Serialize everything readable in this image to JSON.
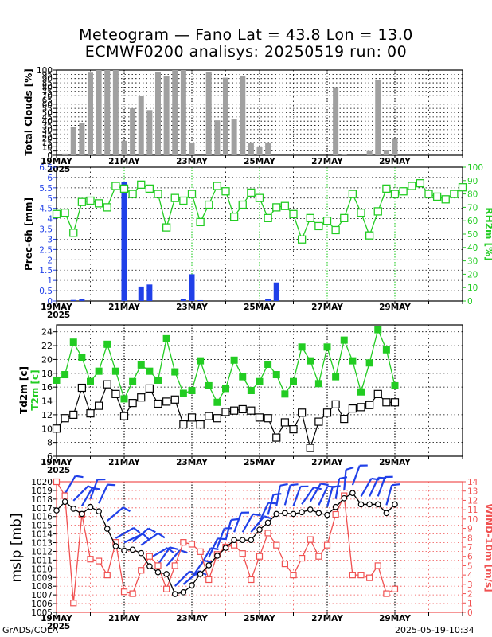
{
  "title_line1": "Meteogram — Fano Lat = 43.8 Lon = 13.0",
  "title_line2": "ECMWF0200 analisys: 20250519 run: 00",
  "footer_left": "GrADS/COLA",
  "footer_right": "2025-05-19-10:34",
  "colors": {
    "bar_gray": "#a0a0a0",
    "blue": "#2040e8",
    "green": "#22cc22",
    "red": "#f05050",
    "black": "#000000"
  },
  "chart_data": [
    {
      "type": "bar",
      "ylabel": "Total Clouds [%]",
      "ylim": [
        0,
        100
      ],
      "yticks": [
        0,
        5,
        10,
        15,
        20,
        25,
        30,
        35,
        40,
        45,
        50,
        55,
        60,
        65,
        70,
        75,
        80,
        85,
        90,
        95,
        100
      ],
      "xticks": [
        "19MAY",
        "21MAY",
        "23MAY",
        "25MAY",
        "27MAY",
        "29MAY"
      ],
      "year": "2025",
      "grid": true,
      "x": [
        0.25,
        0.5,
        0.75,
        1,
        1.25,
        1.5,
        1.75,
        2,
        2.25,
        2.5,
        2.75,
        3,
        3.25,
        3.5,
        3.75,
        4,
        4.25,
        4.5,
        4.75,
        5,
        5.25,
        5.5,
        5.75,
        6,
        6.25,
        6.5,
        6.75,
        7,
        7.25,
        7.5,
        7.75,
        8,
        8.25,
        8.5,
        8.75,
        9,
        9.25,
        9.5,
        9.75,
        10
      ],
      "values": [
        2,
        33,
        38,
        97,
        100,
        100,
        100,
        17,
        55,
        70,
        53,
        98,
        93,
        100,
        100,
        15,
        0,
        98,
        41,
        91,
        42,
        93,
        15,
        10,
        15,
        0,
        0,
        0,
        0,
        0,
        0,
        0,
        80,
        1,
        0,
        0,
        5,
        88,
        6,
        20
      ]
    },
    {
      "type": "bar+line",
      "ylabel": "Prec-6h [mm]",
      "ylabel_right": "RH2m [%]",
      "ylim": [
        0,
        6.5
      ],
      "ylim_right": [
        0,
        100
      ],
      "yticks": [
        0,
        0.5,
        1,
        1.5,
        2,
        2.5,
        3,
        3.5,
        4,
        4.5,
        5,
        5.5,
        6,
        6.5
      ],
      "yticks_right": [
        0,
        10,
        20,
        30,
        40,
        50,
        60,
        70,
        80,
        90,
        100
      ],
      "xticks": [
        "19MAY",
        "21MAY",
        "23MAY",
        "25MAY",
        "27MAY",
        "29MAY"
      ],
      "year": "2025",
      "grid": true,
      "precip_x": [
        0.5,
        0.75,
        2.0,
        2.5,
        2.75,
        3.75,
        4.0,
        4.25,
        6.25,
        6.5
      ],
      "precip": [
        0.05,
        0.1,
        5.8,
        0.7,
        0.8,
        0.08,
        1.3,
        0.04,
        0.1,
        0.9
      ],
      "rh_x": [
        0,
        0.25,
        0.5,
        0.75,
        1,
        1.25,
        1.5,
        1.75,
        2,
        2.25,
        2.5,
        2.75,
        3,
        3.25,
        3.5,
        3.75,
        4,
        4.25,
        4.5,
        4.75,
        5,
        5.25,
        5.5,
        5.75,
        6,
        6.25,
        6.5,
        6.75,
        7,
        7.25,
        7.5,
        7.75,
        8,
        8.25,
        8.5,
        8.75,
        9,
        9.25,
        9.5,
        9.75,
        10,
        10.25,
        10.5,
        10.75,
        11,
        11.25,
        11.5,
        11.75,
        12
      ],
      "rh": [
        65,
        66,
        51,
        74,
        75,
        73,
        70,
        86,
        84,
        80,
        87,
        84,
        80,
        55,
        77,
        75,
        80,
        59,
        72,
        86,
        82,
        63,
        72,
        81,
        77,
        62,
        70,
        71,
        65,
        46,
        62,
        56,
        60,
        53,
        62,
        80,
        66,
        49,
        67,
        84,
        80,
        82,
        86,
        88,
        80,
        78,
        76,
        80,
        85
      ]
    },
    {
      "type": "line",
      "ylabel": "Td2m [c]",
      "ylabel2": "T2m [c]",
      "ylim": [
        6,
        25
      ],
      "yticks": [
        6,
        8,
        10,
        12,
        14,
        16,
        18,
        20,
        22,
        24
      ],
      "xticks": [
        "19MAY",
        "21MAY",
        "23MAY",
        "25MAY",
        "27MAY",
        "29MAY"
      ],
      "year": "2025",
      "grid": true,
      "x": [
        0,
        0.25,
        0.5,
        0.75,
        1,
        1.25,
        1.5,
        1.75,
        2,
        2.25,
        2.5,
        2.75,
        3,
        3.25,
        3.5,
        3.75,
        4,
        4.25,
        4.5,
        4.75,
        5,
        5.25,
        5.5,
        5.75,
        6,
        6.25,
        6.5,
        6.75,
        7,
        7.25,
        7.5,
        7.75,
        8,
        8.25,
        8.5,
        8.75,
        9,
        9.25,
        9.5,
        9.75,
        10
      ],
      "series": [
        {
          "name": "T2m",
          "values": [
            17,
            17.8,
            22.5,
            20.3,
            16.8,
            18.3,
            22.2,
            18.3,
            14.3,
            16.8,
            19.2,
            18.3,
            17,
            23,
            18.2,
            15.1,
            15.5,
            19.8,
            16.2,
            13.8,
            15.8,
            19.9,
            17.5,
            15.5,
            16.8,
            19.3,
            17.8,
            15,
            16.8,
            21.8,
            19.8,
            16.5,
            21.8,
            17.5,
            22.8,
            19.8,
            15.3,
            19.5,
            24.3,
            21.4,
            16.2
          ]
        },
        {
          "name": "Td2m",
          "values": [
            10,
            11.5,
            12,
            15.9,
            12.2,
            13.3,
            16.4,
            15,
            11.8,
            13.7,
            14.5,
            15.8,
            13.6,
            13.9,
            14.2,
            10.6,
            11.6,
            10.6,
            11.8,
            11.5,
            12.4,
            12.6,
            12.8,
            12.6,
            11.6,
            11.5,
            8.7,
            10.9,
            9.9,
            12.3,
            7.2,
            11,
            12.3,
            13.5,
            11.4,
            12.9,
            13.1,
            13.4,
            15,
            13.8,
            13.8
          ]
        }
      ]
    },
    {
      "type": "line+wind",
      "ylabel": "mslp [mb]",
      "ylabel_right": "WIND-10m [m/s]",
      "ylim": [
        1005,
        1020
      ],
      "ylim_right": [
        0,
        14
      ],
      "yticks": [
        1005,
        1006,
        1007,
        1008,
        1009,
        1010,
        1011,
        1012,
        1013,
        1014,
        1015,
        1016,
        1017,
        1018,
        1019,
        1020
      ],
      "yticks_right": [
        0,
        1,
        2,
        3,
        4,
        5,
        6,
        7,
        8,
        9,
        10,
        11,
        12,
        13,
        14
      ],
      "xticks": [
        "19MAY",
        "21MAY",
        "23MAY",
        "25MAY",
        "27MAY",
        "29MAY"
      ],
      "year": "2025",
      "grid": true,
      "x": [
        0,
        0.25,
        0.5,
        0.75,
        1,
        1.25,
        1.5,
        1.75,
        2,
        2.25,
        2.5,
        2.75,
        3,
        3.25,
        3.5,
        3.75,
        4,
        4.25,
        4.5,
        4.75,
        5,
        5.25,
        5.5,
        5.75,
        6,
        6.25,
        6.5,
        6.75,
        7,
        7.25,
        7.5,
        7.75,
        8,
        8.25,
        8.5,
        8.75,
        9,
        9.25,
        9.5,
        9.75,
        10
      ],
      "series": [
        {
          "name": "mslp",
          "values": [
            1016.7,
            1017.7,
            1016.9,
            1016.3,
            1017.1,
            1016.6,
            1014.6,
            1012.6,
            1012.1,
            1012.2,
            1011.8,
            1010.3,
            1009.6,
            1009.4,
            1007.1,
            1007.3,
            1008.1,
            1009.4,
            1010.4,
            1011.5,
            1012.4,
            1013.3,
            1013.3,
            1013.3,
            1014.5,
            1015.3,
            1016.3,
            1016.4,
            1016.3,
            1016.5,
            1016.8,
            1016.4,
            1016.2,
            1017.1,
            1018.1,
            1018.7,
            1017.4,
            1017.4,
            1017.4,
            1016.4,
            1017.4
          ]
        },
        {
          "name": "wind",
          "values": [
            14,
            12.5,
            1,
            10.5,
            5.7,
            5.5,
            4,
            7.5,
            2.2,
            2,
            4.5,
            6,
            5,
            2.5,
            5,
            7.5,
            7.3,
            6.5,
            3.5,
            6.2,
            7,
            7.2,
            6.3,
            3.5,
            6,
            8.5,
            7.2,
            5.2,
            4,
            5.8,
            7.8,
            6,
            7.2,
            10.5,
            12.5,
            4,
            4,
            3.7,
            5,
            2,
            2.5
          ]
        }
      ]
    }
  ]
}
